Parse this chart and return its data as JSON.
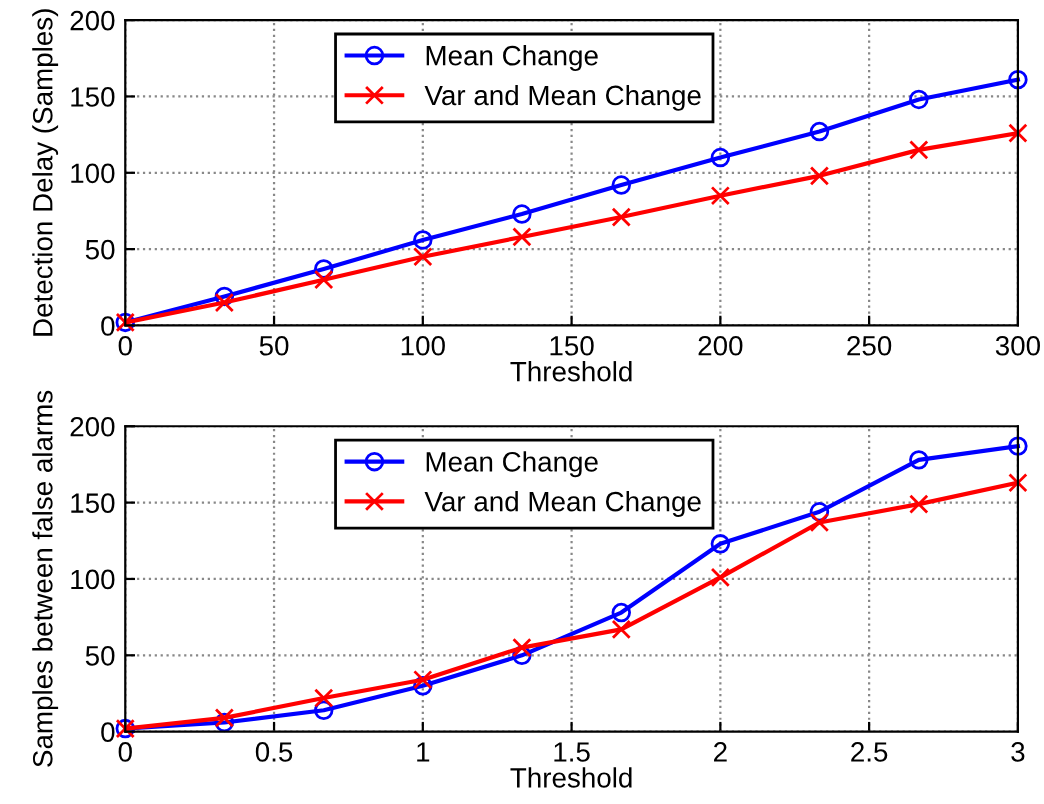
{
  "chart_data": [
    {
      "type": "line",
      "xlabel": "Threshold",
      "ylabel": "Detection Delay (Samples)",
      "x": [
        0,
        33.3,
        66.7,
        100,
        133.3,
        166.7,
        200,
        233.3,
        266.7,
        300
      ],
      "series": [
        {
          "name": "Mean Change",
          "color": "#0000ff",
          "marker": "circle",
          "values": [
            2,
            19,
            37,
            56,
            73,
            92,
            110,
            127,
            148,
            161
          ]
        },
        {
          "name": "Var and Mean Change",
          "color": "#ff0000",
          "marker": "cross",
          "values": [
            2,
            15,
            30,
            45,
            58,
            71,
            85,
            98,
            115,
            126
          ]
        }
      ],
      "xlim": [
        0,
        300
      ],
      "xticks": [
        0,
        50,
        100,
        150,
        200,
        250,
        300
      ],
      "ylim": [
        0,
        200
      ],
      "yticks": [
        0,
        50,
        100,
        150,
        200
      ],
      "grid": true,
      "legend": "top left"
    },
    {
      "type": "line",
      "xlabel": "Threshold",
      "ylabel": "Samples between false alarms",
      "x": [
        0,
        0.333,
        0.667,
        1,
        1.333,
        1.667,
        2,
        2.333,
        2.667,
        3
      ],
      "series": [
        {
          "name": "Mean Change",
          "color": "#0000ff",
          "marker": "circle",
          "values": [
            2,
            6,
            14,
            30,
            50,
            78,
            123,
            144,
            178,
            187
          ]
        },
        {
          "name": "Var and Mean Change",
          "color": "#ff0000",
          "marker": "cross",
          "values": [
            2,
            9,
            22,
            34,
            55,
            67,
            101,
            137,
            149,
            163
          ]
        }
      ],
      "xlim": [
        0,
        3
      ],
      "xticks": [
        0,
        0.5,
        1,
        1.5,
        2,
        2.5,
        3
      ],
      "ylim": [
        0,
        200
      ],
      "yticks": [
        0,
        50,
        100,
        150,
        200
      ],
      "grid": true,
      "legend": "top left"
    }
  ]
}
